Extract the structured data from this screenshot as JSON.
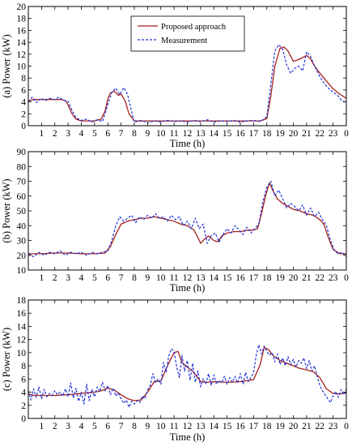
{
  "series_styles": {
    "proposed": {
      "color": "#a3221d",
      "dash": ""
    },
    "measurement": {
      "color": "#1f2fd6",
      "dash": "3,2"
    }
  },
  "legend": {
    "items": [
      {
        "label": "Proposed approach",
        "key": "proposed"
      },
      {
        "label": "Measurement",
        "key": "measurement"
      }
    ]
  },
  "chart_data": [
    {
      "type": "line",
      "panel": "a",
      "xlabel": "Time (h)",
      "ylabel": "(a) Power (kW)",
      "ylim": [
        0,
        20
      ],
      "yticks": [
        0,
        2,
        4,
        6,
        8,
        10,
        12,
        14,
        16,
        18,
        20
      ],
      "xlim": [
        0,
        24
      ],
      "xticks": [
        1,
        2,
        3,
        4,
        5,
        6,
        7,
        8,
        9,
        10,
        11,
        12,
        13,
        14,
        15,
        16,
        17,
        18,
        19,
        20,
        21,
        22,
        23,
        24
      ],
      "xtick_labels": [
        "1",
        "2",
        "3",
        "4",
        "5",
        "6",
        "7",
        "8",
        "9",
        "10",
        "11",
        "12",
        "13",
        "14",
        "15",
        "16",
        "17",
        "18",
        "19",
        "20",
        "21",
        "22",
        "23",
        "0"
      ],
      "legend_position": "top-center",
      "series": [
        {
          "key": "proposed",
          "name": "Proposed approach",
          "x": [
            0,
            0.5,
            1,
            1.5,
            2,
            2.5,
            2.8,
            3,
            3.3,
            3.6,
            4,
            4.5,
            5,
            5.5,
            5.8,
            6,
            6.2,
            6.5,
            6.8,
            7,
            7.3,
            7.6,
            8,
            9,
            10,
            11,
            12,
            13,
            14,
            15,
            16,
            17,
            17.5,
            18,
            18.3,
            18.6,
            19,
            19.3,
            19.6,
            20,
            20.3,
            20.6,
            21,
            21.3,
            21.6,
            22,
            22.5,
            23,
            23.5,
            24
          ],
          "y": [
            4.2,
            4.4,
            4.4,
            4.4,
            4.4,
            4.4,
            4.2,
            3.5,
            2,
            1.1,
            0.8,
            0.8,
            0.8,
            1.1,
            2.5,
            4.5,
            5.5,
            5.8,
            5.1,
            5.3,
            4.2,
            2,
            0.8,
            0.8,
            0.8,
            0.8,
            0.8,
            0.8,
            0.8,
            0.8,
            0.8,
            0.8,
            0.8,
            1.2,
            5,
            10,
            13,
            13.2,
            12.5,
            10.8,
            11,
            11.3,
            11.8,
            11.2,
            10,
            8.8,
            7.5,
            6.2,
            5.3,
            4.6
          ]
        },
        {
          "key": "measurement",
          "name": "Measurement",
          "x": [
            0,
            0.3,
            0.6,
            1,
            1.3,
            1.6,
            2,
            2.3,
            2.6,
            3,
            3.3,
            3.6,
            4,
            4.4,
            4.8,
            5.2,
            5.6,
            6,
            6.3,
            6.6,
            6.9,
            7.2,
            7.5,
            7.8,
            8,
            8.5,
            9,
            9.5,
            10,
            10.5,
            11,
            11.5,
            12,
            12.5,
            13,
            13.5,
            14,
            14.5,
            15,
            15.5,
            16,
            16.5,
            17,
            17.5,
            18,
            18.3,
            18.6,
            18.9,
            19.2,
            19.5,
            19.8,
            20.1,
            20.4,
            20.7,
            21,
            21.3,
            21.6,
            22,
            22.3,
            22.6,
            23,
            23.3,
            23.6,
            24
          ],
          "y": [
            4,
            4.8,
            3.9,
            4.6,
            4.2,
            4.6,
            4.4,
            4.8,
            4.3,
            4.1,
            2.6,
            1.3,
            0.9,
            1.1,
            0.6,
            1,
            0.7,
            3.6,
            5.6,
            6.3,
            5.2,
            6.4,
            5.2,
            2.3,
            0.6,
            0.9,
            0.5,
            0.8,
            0.6,
            0.9,
            0.7,
            0.8,
            0.6,
            0.9,
            0.7,
            1,
            0.6,
            0.8,
            0.7,
            0.9,
            0.6,
            0.8,
            0.9,
            0.7,
            1.5,
            7,
            12.5,
            13.6,
            12.8,
            10.2,
            8.8,
            9.6,
            10,
            9.2,
            12.4,
            11.6,
            10,
            8.2,
            7.2,
            6.4,
            5.6,
            5.2,
            4.3,
            3.8
          ]
        }
      ]
    },
    {
      "type": "line",
      "panel": "b",
      "xlabel": "Time (h)",
      "ylabel": "(b) Power (kW)",
      "ylim": [
        10,
        90
      ],
      "yticks": [
        10,
        20,
        30,
        40,
        50,
        60,
        70,
        80,
        90
      ],
      "xlim": [
        0,
        24
      ],
      "xticks": [
        1,
        2,
        3,
        4,
        5,
        6,
        7,
        8,
        9,
        10,
        11,
        12,
        13,
        14,
        15,
        16,
        17,
        18,
        19,
        20,
        21,
        22,
        23,
        24
      ],
      "xtick_labels": [
        "1",
        "2",
        "3",
        "4",
        "5",
        "6",
        "7",
        "8",
        "9",
        "10",
        "11",
        "12",
        "13",
        "14",
        "15",
        "16",
        "17",
        "18",
        "19",
        "20",
        "21",
        "22",
        "23",
        "0"
      ],
      "series": [
        {
          "key": "proposed",
          "name": "Proposed approach",
          "x": [
            0,
            1,
            2,
            3,
            4,
            5,
            5.8,
            6.2,
            6.6,
            7,
            7.5,
            8,
            8.5,
            9,
            9.5,
            10,
            10.5,
            11,
            11.5,
            12,
            12.5,
            12.8,
            13,
            13.3,
            13.6,
            14,
            14.3,
            14.6,
            15,
            15.5,
            16,
            16.5,
            17,
            17.3,
            17.6,
            17.9,
            18.2,
            18.5,
            18.8,
            19.2,
            19.6,
            20,
            20.5,
            21,
            21.5,
            22,
            22.3,
            22.6,
            23,
            23.5,
            24
          ],
          "y": [
            21,
            21,
            21.5,
            21.5,
            21,
            21,
            21.5,
            26,
            34,
            41,
            43,
            44,
            45,
            45,
            46,
            45,
            44,
            43,
            41,
            40,
            37,
            32,
            28,
            31,
            33,
            30,
            29,
            33,
            35,
            36,
            36,
            37,
            37,
            38,
            48,
            60,
            69,
            63,
            58,
            55,
            53,
            51,
            50,
            48,
            47,
            44,
            41,
            33,
            24,
            21,
            21
          ]
        },
        {
          "key": "measurement",
          "name": "Measurement",
          "x": [
            0,
            0.4,
            0.8,
            1.2,
            1.6,
            2,
            2.4,
            2.8,
            3.2,
            3.6,
            4,
            4.4,
            4.8,
            5.2,
            5.6,
            6,
            6.3,
            6.6,
            6.9,
            7.2,
            7.5,
            7.8,
            8.1,
            8.4,
            8.7,
            9,
            9.3,
            9.6,
            9.9,
            10.2,
            10.5,
            10.8,
            11.1,
            11.4,
            11.7,
            12,
            12.3,
            12.6,
            12.9,
            13.2,
            13.5,
            13.8,
            14.1,
            14.4,
            14.7,
            15,
            15.3,
            15.6,
            15.9,
            16.2,
            16.5,
            16.8,
            17.1,
            17.4,
            17.7,
            18,
            18.3,
            18.6,
            18.9,
            19.2,
            19.5,
            19.8,
            20.1,
            20.4,
            20.7,
            21,
            21.3,
            21.6,
            21.9,
            22.2,
            22.5,
            22.8,
            23.1,
            23.4,
            23.7,
            24
          ],
          "y": [
            21,
            19,
            22,
            20,
            22,
            21,
            23,
            20,
            22,
            21,
            22,
            20,
            22,
            21,
            22,
            23,
            30,
            40,
            46,
            43,
            45,
            47,
            42,
            46,
            44,
            47,
            45,
            48,
            45,
            46,
            43,
            47,
            44,
            46,
            40,
            43,
            38,
            45,
            38,
            41,
            28,
            33,
            35,
            29,
            34,
            38,
            35,
            40,
            37,
            34,
            39,
            35,
            38,
            41,
            56,
            66,
            70,
            60,
            64,
            58,
            52,
            55,
            53,
            50,
            54,
            47,
            52,
            46,
            49,
            44,
            40,
            30,
            23,
            21,
            22,
            19
          ]
        }
      ]
    },
    {
      "type": "line",
      "panel": "c",
      "xlabel": "Time (h)",
      "ylabel": "(c) Power (kW)",
      "ylim": [
        0,
        18
      ],
      "yticks": [
        0,
        2,
        4,
        6,
        8,
        10,
        12,
        14,
        16,
        18
      ],
      "xlim": [
        0,
        24
      ],
      "xticks": [
        1,
        2,
        3,
        4,
        5,
        6,
        7,
        8,
        9,
        10,
        11,
        12,
        13,
        14,
        15,
        16,
        17,
        18,
        19,
        20,
        21,
        22,
        23,
        24
      ],
      "xtick_labels": [
        "1",
        "2",
        "3",
        "4",
        "5",
        "6",
        "7",
        "8",
        "9",
        "10",
        "11",
        "12",
        "13",
        "14",
        "15",
        "16",
        "17",
        "18",
        "19",
        "20",
        "21",
        "22",
        "23",
        "0"
      ],
      "series": [
        {
          "key": "proposed",
          "name": "Proposed approach",
          "x": [
            0,
            0.5,
            1,
            2,
            3,
            3.5,
            4,
            5,
            5.5,
            6,
            6.5,
            7,
            7.5,
            8,
            8.5,
            9,
            9.5,
            10,
            10.5,
            11,
            11.3,
            11.6,
            12,
            12.5,
            13,
            13.5,
            14,
            15,
            16,
            17,
            17.5,
            17.8,
            18.1,
            18.5,
            19,
            19.5,
            20,
            20.5,
            21,
            21.5,
            22,
            22.5,
            23,
            23.5,
            24
          ],
          "y": [
            3.7,
            3.5,
            3.5,
            3.5,
            3.6,
            3.7,
            3.8,
            4,
            4.2,
            4.6,
            4.3,
            3.6,
            3,
            2.7,
            2.8,
            4,
            5.6,
            5.7,
            8,
            10,
            10.2,
            8.5,
            7.8,
            7,
            5.6,
            5.5,
            5.6,
            5.5,
            5.6,
            5.9,
            8.2,
            10.8,
            10.5,
            9.5,
            8.8,
            8.4,
            8,
            7.6,
            7.4,
            7.1,
            6.2,
            4.5,
            3.8,
            3.7,
            3.9
          ]
        },
        {
          "key": "measurement",
          "name": "Measurement",
          "x": [
            0,
            0.2,
            0.4,
            0.6,
            0.8,
            1,
            1.2,
            1.4,
            1.6,
            1.8,
            2,
            2.2,
            2.4,
            2.6,
            2.8,
            3,
            3.2,
            3.4,
            3.6,
            3.8,
            4,
            4.2,
            4.4,
            4.6,
            4.8,
            5,
            5.2,
            5.4,
            5.6,
            5.8,
            6,
            6.2,
            6.4,
            6.6,
            6.8,
            7,
            7.2,
            7.4,
            7.6,
            7.8,
            8,
            8.2,
            8.4,
            8.6,
            8.8,
            9,
            9.2,
            9.4,
            9.6,
            9.8,
            10,
            10.2,
            10.4,
            10.6,
            10.8,
            11,
            11.2,
            11.4,
            11.6,
            11.8,
            12,
            12.2,
            12.4,
            12.6,
            12.8,
            13,
            13.2,
            13.4,
            13.6,
            13.8,
            14,
            14.2,
            14.4,
            14.6,
            14.8,
            15,
            15.2,
            15.4,
            15.6,
            15.8,
            16,
            16.2,
            16.4,
            16.6,
            16.8,
            17,
            17.2,
            17.4,
            17.6,
            17.8,
            18,
            18.2,
            18.4,
            18.6,
            18.8,
            19,
            19.2,
            19.4,
            19.6,
            19.8,
            20,
            20.2,
            20.4,
            20.6,
            20.8,
            21,
            21.2,
            21.4,
            21.6,
            21.8,
            22,
            22.2,
            22.4,
            22.6,
            22.8,
            23,
            23.2,
            23.4,
            23.6,
            23.8,
            24
          ],
          "y": [
            4.2,
            2.8,
            4.5,
            3.2,
            4.8,
            3,
            4.4,
            3.3,
            3.8,
            3.5,
            4.2,
            3.6,
            4,
            3.4,
            4.5,
            3.3,
            5.4,
            3.1,
            4.6,
            2.6,
            4,
            2.2,
            5.2,
            2.7,
            4.4,
            3.3,
            4.8,
            4.1,
            5.5,
            4.2,
            5,
            3.6,
            4.6,
            3.4,
            3.9,
            3,
            2.3,
            2.8,
            1.7,
            2.6,
            2.2,
            2.7,
            2.4,
            3.4,
            3,
            4.3,
            5,
            6.8,
            5.5,
            6,
            5.2,
            8.5,
            7,
            9.5,
            10.6,
            10.2,
            7.8,
            6.2,
            9.6,
            7.2,
            8.8,
            5.8,
            8.4,
            5.5,
            7.2,
            4.8,
            6,
            5.2,
            6.8,
            5,
            6.6,
            5.2,
            5.8,
            5.4,
            6.4,
            5.2,
            6.2,
            5.5,
            6.4,
            5.4,
            6.8,
            5.2,
            7,
            5.6,
            6.2,
            7,
            9.6,
            11.2,
            9.8,
            11,
            10.2,
            9.6,
            10,
            8.6,
            9.8,
            8.2,
            9.2,
            8,
            9.4,
            8.2,
            9,
            7.8,
            8.8,
            8.4,
            9.2,
            7.6,
            8.8,
            7.2,
            8,
            6.4,
            5,
            4.2,
            3.6,
            3,
            2.4,
            3.4,
            4.1,
            3.2,
            4.4,
            3.6,
            4.5
          ]
        }
      ]
    }
  ]
}
